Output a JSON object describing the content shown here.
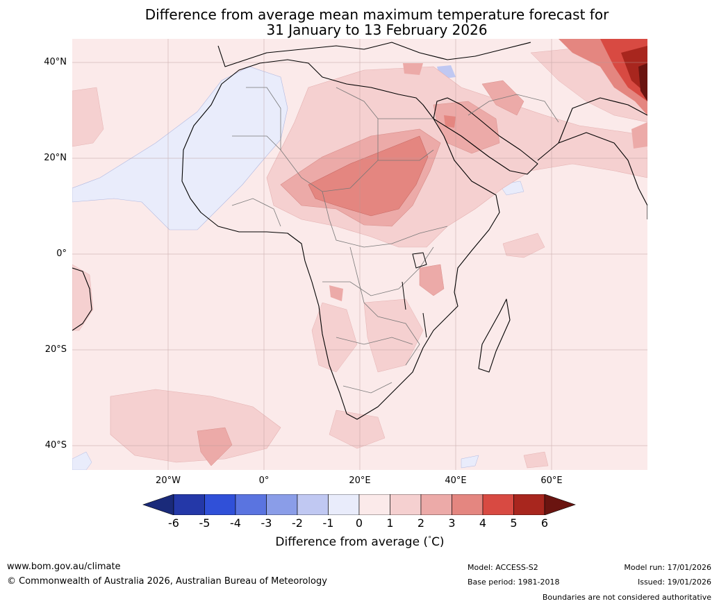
{
  "title": {
    "line1": "Difference from average mean maximum temperature forecast for",
    "line2": "31 January to 13 February 2026"
  },
  "map": {
    "lat_labels": [
      "40°N",
      "20°N",
      "0°",
      "20°S",
      "40°S"
    ],
    "lon_labels": [
      "20°W",
      "0°",
      "20°E",
      "40°E",
      "60°E"
    ]
  },
  "colorbar": {
    "label": "Difference from average (",
    "label_symbol": "°",
    "label_unit": "C)",
    "ticks": [
      "-6",
      "-5",
      "-4",
      "-3",
      "-2",
      "-1",
      "0",
      "1",
      "2",
      "3",
      "4",
      "5",
      "6"
    ],
    "colors": [
      "#1a2a7a",
      "#2438a8",
      "#3050d8",
      "#5a74e0",
      "#8a9de8",
      "#c0c8f2",
      "#e9ecfb",
      "#fbeaea",
      "#f5d0d0",
      "#ecaaa8",
      "#e48680",
      "#d84a42",
      "#a8261e",
      "#6a1410"
    ]
  },
  "footer": {
    "website": "www.bom.gov.au/climate",
    "copyright": "© Commonwealth of Australia 2026, Australian Bureau of Meteorology",
    "model": "Model: ACCESS-S2",
    "base_period": "Base period: 1981-2018",
    "model_run": "Model run: 17/01/2026",
    "issued": "Issued: 19/01/2026",
    "disclaimer": "Boundaries are not considered authoritative"
  }
}
